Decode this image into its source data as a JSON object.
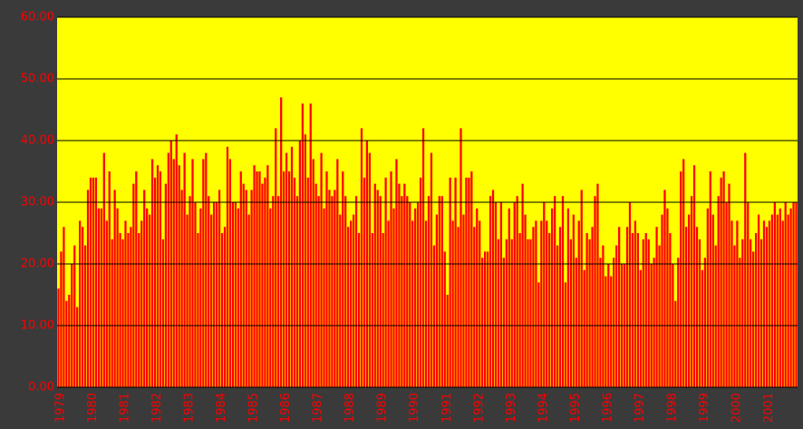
{
  "chart_data": {
    "type": "bar",
    "categories": [
      "1979",
      null,
      null,
      null,
      null,
      null,
      null,
      null,
      null,
      null,
      null,
      null,
      "1980",
      null,
      null,
      null,
      null,
      null,
      null,
      null,
      null,
      null,
      null,
      null,
      "1981",
      null,
      null,
      null,
      null,
      null,
      null,
      null,
      null,
      null,
      null,
      null,
      "1982",
      null,
      null,
      null,
      null,
      null,
      null,
      null,
      null,
      null,
      null,
      null,
      "1983",
      null,
      null,
      null,
      null,
      null,
      null,
      null,
      null,
      null,
      null,
      null,
      "1984",
      null,
      null,
      null,
      null,
      null,
      null,
      null,
      null,
      null,
      null,
      null,
      "1985",
      null,
      null,
      null,
      null,
      null,
      null,
      null,
      null,
      null,
      null,
      null,
      "1986",
      null,
      null,
      null,
      null,
      null,
      null,
      null,
      null,
      null,
      null,
      null,
      "1987",
      null,
      null,
      null,
      null,
      null,
      null,
      null,
      null,
      null,
      null,
      null,
      "1988",
      null,
      null,
      null,
      null,
      null,
      null,
      null,
      null,
      null,
      null,
      null,
      "1989",
      null,
      null,
      null,
      null,
      null,
      null,
      null,
      null,
      null,
      null,
      null,
      "1990",
      null,
      null,
      null,
      null,
      null,
      null,
      null,
      null,
      null,
      null,
      null,
      "1991",
      null,
      null,
      null,
      null,
      null,
      null,
      null,
      null,
      null,
      null,
      null,
      "1992",
      null,
      null,
      null,
      null,
      null,
      null,
      null,
      null,
      null,
      null,
      null,
      "1993",
      null,
      null,
      null,
      null,
      null,
      null,
      null,
      null,
      null,
      null,
      null,
      "1994",
      null,
      null,
      null,
      null,
      null,
      null,
      null,
      null,
      null,
      null,
      null,
      "1995",
      null,
      null,
      null,
      null,
      null,
      null,
      null,
      null,
      null,
      null,
      null,
      "1996",
      null,
      null,
      null,
      null,
      null,
      null,
      null,
      null,
      null,
      null,
      null,
      "1997",
      null,
      null,
      null,
      null,
      null,
      null,
      null,
      null,
      null,
      null,
      null,
      "1998",
      null,
      null,
      null,
      null,
      null,
      null,
      null,
      null,
      null,
      null,
      null,
      "1999",
      null,
      null,
      null,
      null,
      null,
      null,
      null,
      null,
      null,
      null,
      null,
      "2000",
      null,
      null,
      null,
      null,
      null,
      null,
      null,
      null,
      null,
      null,
      null,
      "2001",
      null,
      null,
      null,
      null,
      null,
      null,
      null,
      null,
      null,
      null,
      null
    ],
    "values": [
      16,
      22,
      26,
      14,
      15,
      20,
      23,
      13,
      27,
      26,
      23,
      32,
      34,
      34,
      34,
      29,
      29,
      38,
      27,
      35,
      24,
      32,
      29,
      25,
      24,
      27,
      25,
      26,
      33,
      35,
      25,
      27,
      32,
      29,
      28,
      37,
      34,
      36,
      35,
      24,
      33,
      38,
      40,
      37,
      41,
      36,
      32,
      38,
      28,
      31,
      37,
      30,
      25,
      29,
      37,
      38,
      31,
      28,
      30,
      30,
      32,
      25,
      26,
      39,
      37,
      30,
      30,
      29,
      35,
      33,
      32,
      28,
      32,
      36,
      35,
      35,
      33,
      34,
      36,
      29,
      31,
      42,
      31,
      47,
      35,
      38,
      35,
      39,
      34,
      31,
      40,
      46,
      41,
      34,
      46,
      37,
      33,
      31,
      38,
      29,
      35,
      32,
      31,
      32,
      37,
      28,
      35,
      31,
      26,
      27,
      28,
      31,
      25,
      42,
      34,
      40,
      38,
      25,
      33,
      32,
      31,
      25,
      34,
      27,
      35,
      29,
      37,
      33,
      31,
      33,
      31,
      30,
      27,
      29,
      30,
      34,
      42,
      27,
      31,
      38,
      23,
      28,
      31,
      31,
      22,
      15,
      34,
      27,
      34,
      26,
      42,
      28,
      34,
      34,
      35,
      26,
      29,
      27,
      21,
      22,
      22,
      31,
      32,
      30,
      24,
      30,
      21,
      24,
      29,
      24,
      30,
      31,
      25,
      33,
      28,
      24,
      24,
      26,
      27,
      17,
      27,
      30,
      27,
      25,
      29,
      31,
      23,
      26,
      31,
      17,
      29,
      24,
      28,
      21,
      27,
      32,
      19,
      25,
      24,
      26,
      31,
      33,
      21,
      23,
      18,
      20,
      18,
      21,
      23,
      26,
      20,
      20,
      26,
      30,
      25,
      27,
      25,
      19,
      24,
      25,
      24,
      20,
      21,
      26,
      23,
      28,
      32,
      29,
      25,
      20,
      14,
      21,
      35,
      37,
      26,
      28,
      31,
      36,
      26,
      24,
      19,
      21,
      29,
      35,
      28,
      23,
      31,
      34,
      35,
      30,
      33,
      27,
      23,
      27,
      21,
      24,
      38,
      30,
      24,
      22,
      25,
      28,
      24,
      27,
      26,
      27,
      28,
      30,
      28,
      29,
      27,
      30,
      28,
      29,
      30,
      30
    ],
    "color": "#ff0000",
    "ylim": [
      0,
      60
    ],
    "yticks": [
      {
        "value": 0,
        "label": "0.00"
      },
      {
        "value": 10,
        "label": "10.00"
      },
      {
        "value": 20,
        "label": "20.00"
      },
      {
        "value": 30,
        "label": "30.00"
      },
      {
        "value": 40,
        "label": "40.00"
      },
      {
        "value": 50,
        "label": "50.00"
      },
      {
        "value": 60,
        "label": "60.00"
      }
    ],
    "grid": true
  }
}
